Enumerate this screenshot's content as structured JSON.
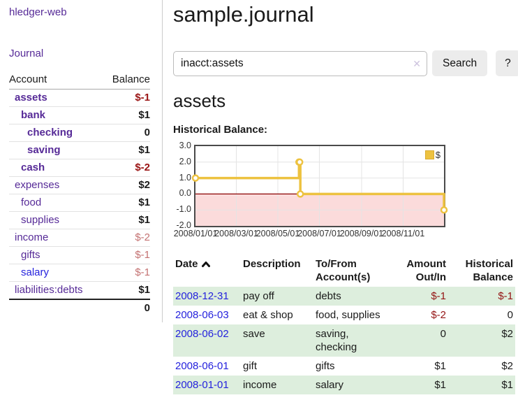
{
  "brand": "hledger-web",
  "nav": {
    "journal": "Journal"
  },
  "sidebar": {
    "headers": {
      "account": "Account",
      "balance": "Balance"
    },
    "accounts": [
      {
        "name": "assets",
        "balance": "$-1"
      },
      {
        "name": "bank",
        "balance": "$1"
      },
      {
        "name": "checking",
        "balance": "0"
      },
      {
        "name": "saving",
        "balance": "$1"
      },
      {
        "name": "cash",
        "balance": "$-2"
      },
      {
        "name": "expenses",
        "balance": "$2"
      },
      {
        "name": "food",
        "balance": "$1"
      },
      {
        "name": "supplies",
        "balance": "$1"
      },
      {
        "name": "income",
        "balance": "$-2"
      },
      {
        "name": "gifts",
        "balance": "$-1"
      },
      {
        "name": "salary",
        "balance": "$-1"
      },
      {
        "name": "liabilities:debts",
        "balance": "$1"
      }
    ],
    "total": "0"
  },
  "main": {
    "title": "sample.journal",
    "search": {
      "value": "inacct:assets",
      "clear": "✕",
      "button": "Search",
      "help": "?"
    },
    "heading": "assets",
    "chart_title": "Historical Balance:"
  },
  "chart_data": {
    "type": "line",
    "step": true,
    "title": "Historical Balance of assets",
    "series": [
      {
        "name": "$",
        "color": "#edc240",
        "points": [
          [
            "2008-01-01",
            1
          ],
          [
            "2008-06-01",
            2
          ],
          [
            "2008-06-02",
            2
          ],
          [
            "2008-06-03",
            0
          ],
          [
            "2008-12-31",
            -1
          ]
        ]
      }
    ],
    "xrange": [
      "2008-01-01",
      "2008-12-31"
    ],
    "ylim": [
      -2,
      3
    ],
    "yticks": [
      "3.0",
      "2.0",
      "1.0",
      "0.0",
      "-1.0",
      "-2.0"
    ],
    "xticks": [
      "2008/01/01",
      "2008/03/01",
      "2008/05/01",
      "2008/07/01",
      "2008/09/01",
      "2008/11/01"
    ],
    "grid": true,
    "legend_position": "top-right",
    "negative_fill": "#fbdbdb",
    "zero_line_color": "#8b0000"
  },
  "register": {
    "columns": [
      "Date",
      "Description",
      "To/From Account(s)",
      "Amount Out/In",
      "Historical Balance"
    ],
    "rows": [
      {
        "date": "2008-12-31",
        "description": "pay off",
        "accounts": "debts",
        "amount": "$-1",
        "balance": "$-1"
      },
      {
        "date": "2008-06-03",
        "description": "eat & shop",
        "accounts": "food, supplies",
        "amount": "$-2",
        "balance": "0"
      },
      {
        "date": "2008-06-02",
        "description": "save",
        "accounts": "saving, checking",
        "amount": "0",
        "balance": "$2"
      },
      {
        "date": "2008-06-01",
        "description": "gift",
        "accounts": "gifts",
        "amount": "$1",
        "balance": "$2"
      },
      {
        "date": "2008-01-01",
        "description": "income",
        "accounts": "salary",
        "amount": "$1",
        "balance": "$1"
      }
    ]
  }
}
